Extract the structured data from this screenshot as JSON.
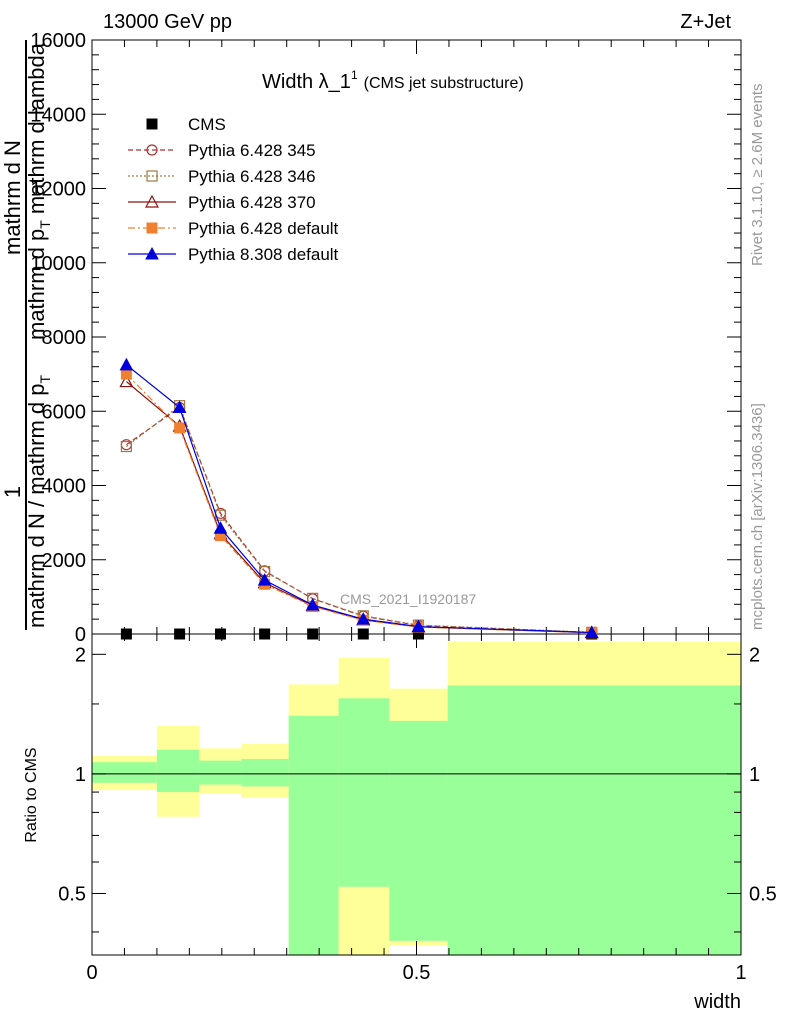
{
  "header": {
    "left": "13000 GeV pp",
    "right": "Z+Jet"
  },
  "side_labels": {
    "rivet": "Rivet 3.1.10, ≥ 2.6M events",
    "mcplots": "mcplots.cern.ch [arXiv:1306.3436]"
  },
  "chart_data": [
    {
      "type": "line",
      "title": "Width λ_1",
      "title_sup": "1",
      "subtitle": "(CMS jet substructure)",
      "watermark": "CMS_2021_I1920187",
      "ylabel_parts": [
        "1",
        "mathrm d N / mathrm d p",
        "T",
        "mathrm d N",
        "mathrm d p",
        "T",
        "mathrm d lambda"
      ],
      "xlim": [
        0,
        1
      ],
      "ylim": [
        0,
        16000
      ],
      "yticks": [
        0,
        2000,
        4000,
        6000,
        8000,
        10000,
        12000,
        14000,
        16000
      ],
      "ytick_labels": [
        "0",
        "2000",
        "4000",
        "6000",
        "8000",
        "10000",
        "12000",
        "14000",
        "16000"
      ],
      "legend_position": "top-left",
      "x": [
        0.053,
        0.135,
        0.198,
        0.266,
        0.34,
        0.418,
        0.503,
        0.77
      ],
      "series": [
        {
          "name": "CMS",
          "color": "#000000",
          "marker": "square",
          "values": [
            0,
            0,
            0,
            0,
            0,
            0,
            0,
            0
          ]
        },
        {
          "name": "Pythia 6.428 345",
          "color": "#b03030",
          "marker": "circle-open",
          "dash": "5,3",
          "values": [
            5100,
            6100,
            3250,
            1700,
            950,
            480,
            230,
            40
          ]
        },
        {
          "name": "Pythia 6.428 346",
          "color": "#9a7a40",
          "marker": "square-open",
          "dash": "2,2",
          "values": [
            5050,
            6150,
            3200,
            1680,
            960,
            490,
            240,
            45
          ]
        },
        {
          "name": "Pythia 6.428 370",
          "color": "#8b1010",
          "marker": "triangle-open",
          "dash": "",
          "values": [
            6800,
            5600,
            2700,
            1380,
            760,
            380,
            190,
            35
          ]
        },
        {
          "name": "Pythia 6.428 default",
          "color": "#f08030",
          "marker": "square-filled",
          "dash": "7,3,2,3",
          "values": [
            7000,
            5550,
            2650,
            1340,
            740,
            370,
            185,
            35
          ]
        },
        {
          "name": "Pythia 8.308 default",
          "color": "#0000dd",
          "marker": "triangle-filled",
          "dash": "",
          "values": [
            7250,
            6100,
            2850,
            1450,
            780,
            400,
            200,
            40
          ]
        }
      ]
    },
    {
      "type": "area",
      "ylabel": "Ratio to CMS",
      "xlabel": "width",
      "xlim": [
        0,
        1
      ],
      "ylim": [
        0.35,
        2.25
      ],
      "xtick_labels": [
        "0",
        "0.5",
        "1"
      ],
      "ytick_labels": [
        "0.5",
        "1",
        "2"
      ],
      "reference_line": 1,
      "bins": [
        {
          "x": [
            0.0,
            0.1
          ],
          "green": [
            0.95,
            1.07
          ],
          "yellow": [
            0.91,
            1.11
          ]
        },
        {
          "x": [
            0.1,
            0.165
          ],
          "green": [
            0.9,
            1.15
          ],
          "yellow": [
            0.78,
            1.32
          ]
        },
        {
          "x": [
            0.165,
            0.23
          ],
          "green": [
            0.94,
            1.08
          ],
          "yellow": [
            0.89,
            1.16
          ]
        },
        {
          "x": [
            0.23,
            0.303
          ],
          "green": [
            0.93,
            1.09
          ],
          "yellow": [
            0.87,
            1.19
          ]
        },
        {
          "x": [
            0.303,
            0.38
          ],
          "green": [
            0.35,
            1.4
          ],
          "yellow": [
            0.35,
            1.68
          ]
        },
        {
          "x": [
            0.38,
            0.458
          ],
          "green": [
            0.52,
            1.55
          ],
          "yellow": [
            0.35,
            1.96
          ]
        },
        {
          "x": [
            0.458,
            0.548
          ],
          "green": [
            0.38,
            1.36
          ],
          "yellow": [
            0.37,
            1.64
          ]
        },
        {
          "x": [
            0.548,
            1.0
          ],
          "green": [
            0.35,
            1.67
          ],
          "yellow": [
            0.35,
            2.15
          ]
        }
      ]
    }
  ]
}
